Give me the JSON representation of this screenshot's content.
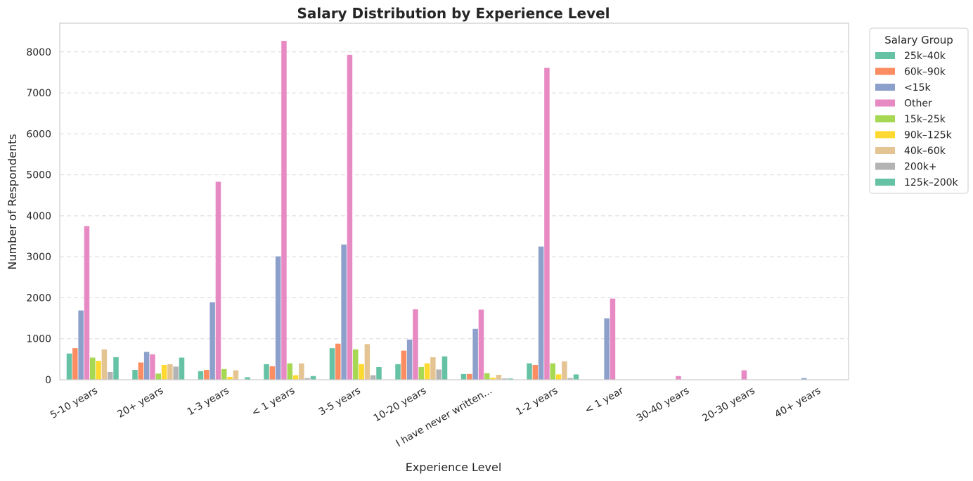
{
  "chart_data": {
    "type": "bar",
    "title": "Salary Distribution by Experience Level",
    "xlabel": "Experience Level",
    "ylabel": "Number of Respondents",
    "ylim": [
      0,
      8700
    ],
    "yticks": [
      0,
      1000,
      2000,
      3000,
      4000,
      5000,
      6000,
      7000,
      8000
    ],
    "grid": true,
    "legend_title": "Salary Group",
    "legend_position": "outside-upper-right",
    "categories": [
      "5-10 years",
      "20+ years",
      "1-3 years",
      "< 1 years",
      "3-5 years",
      "10-20 years",
      "I have never written...",
      "1-2 years",
      "< 1 year",
      "30-40 years",
      "20-30 years",
      "40+ years"
    ],
    "series": [
      {
        "name": "25k–40k",
        "color": "#66c2a5",
        "values": [
          640,
          240,
          210,
          380,
          770,
          380,
          140,
          400,
          0,
          0,
          0,
          0
        ]
      },
      {
        "name": "60k–90k",
        "color": "#fc8d62",
        "values": [
          770,
          420,
          240,
          330,
          880,
          710,
          140,
          360,
          0,
          0,
          0,
          0
        ]
      },
      {
        "name": "<15k",
        "color": "#8da0cb",
        "values": [
          1690,
          680,
          1890,
          3010,
          3300,
          980,
          1240,
          3250,
          1500,
          0,
          0,
          40
        ]
      },
      {
        "name": "Other",
        "color": "#e78ac3",
        "values": [
          3750,
          620,
          4830,
          8270,
          7930,
          1720,
          1710,
          7610,
          1980,
          90,
          230,
          0
        ]
      },
      {
        "name": "15k–25k",
        "color": "#a6d854",
        "values": [
          540,
          150,
          260,
          400,
          740,
          310,
          160,
          400,
          0,
          0,
          0,
          0
        ]
      },
      {
        "name": "90k–125k",
        "color": "#ffd92f",
        "values": [
          460,
          360,
          70,
          110,
          380,
          400,
          50,
          130,
          0,
          0,
          0,
          0
        ]
      },
      {
        "name": "40k–60k",
        "color": "#e5c494",
        "values": [
          740,
          380,
          230,
          400,
          870,
          550,
          120,
          450,
          0,
          0,
          0,
          0
        ]
      },
      {
        "name": "200k+",
        "color": "#b3b3b3",
        "values": [
          190,
          320,
          0,
          40,
          110,
          250,
          30,
          40,
          0,
          0,
          0,
          0
        ]
      },
      {
        "name": "125k–200k",
        "color": "#66c2a5",
        "values": [
          550,
          540,
          60,
          90,
          310,
          570,
          30,
          130,
          0,
          0,
          0,
          0
        ]
      }
    ]
  }
}
